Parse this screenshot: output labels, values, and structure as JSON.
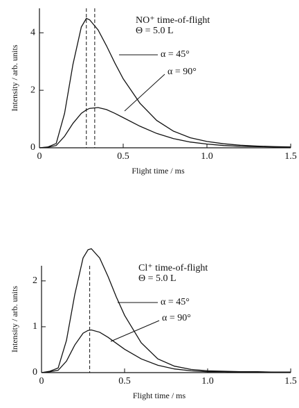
{
  "chart_data": [
    {
      "type": "line",
      "title": "NO⁺ time-of-flight",
      "subtitle": "Θ = 5.0 L",
      "xlabel": "Flight time / ms",
      "ylabel": "Intensity / arb. units",
      "x": [
        0,
        0.05,
        0.1,
        0.15,
        0.2,
        0.25,
        0.28,
        0.3,
        0.35,
        0.4,
        0.45,
        0.5,
        0.6,
        0.7,
        0.8,
        0.9,
        1.0,
        1.1,
        1.2,
        1.3,
        1.4,
        1.5
      ],
      "series": [
        {
          "name": "α = 45°",
          "color": "#111111",
          "values": [
            0,
            0.03,
            0.15,
            1.2,
            2.9,
            4.2,
            4.5,
            4.45,
            4.1,
            3.55,
            2.95,
            2.4,
            1.55,
            0.95,
            0.58,
            0.35,
            0.22,
            0.14,
            0.09,
            0.06,
            0.04,
            0.03
          ]
        },
        {
          "name": "α = 90°",
          "color": "#111111",
          "values": [
            0,
            0.02,
            0.08,
            0.4,
            0.85,
            1.2,
            1.32,
            1.37,
            1.4,
            1.33,
            1.2,
            1.05,
            0.75,
            0.5,
            0.32,
            0.2,
            0.13,
            0.08,
            0.05,
            0.04,
            0.03,
            0.02
          ]
        }
      ],
      "peak_lines": [
        0.28,
        0.33
      ],
      "xlim": [
        0,
        1.5
      ],
      "xticks": [
        0,
        0.5,
        {
          "value": 1,
          "label": "1.0"
        },
        1.5
      ],
      "ylim": [
        0,
        4.85
      ],
      "yticks": [
        0,
        2,
        4
      ]
    },
    {
      "type": "line",
      "title": "Cl⁺ time-of-flight",
      "subtitle": "Θ = 5.0 L",
      "xlabel": "Flight time / ms",
      "ylabel": "Intensity / arb. units",
      "x": [
        0,
        0.05,
        0.1,
        0.15,
        0.2,
        0.25,
        0.28,
        0.3,
        0.35,
        0.4,
        0.45,
        0.5,
        0.6,
        0.7,
        0.8,
        0.9,
        1.0,
        1.1,
        1.2,
        1.3,
        1.4,
        1.5
      ],
      "series": [
        {
          "name": "α = 45°",
          "color": "#111111",
          "values": [
            0,
            0.03,
            0.1,
            0.7,
            1.7,
            2.5,
            2.68,
            2.7,
            2.5,
            2.1,
            1.65,
            1.25,
            0.65,
            0.3,
            0.14,
            0.07,
            0.04,
            0.03,
            0.02,
            0.02,
            0.01,
            0.01
          ]
        },
        {
          "name": "α = 90°",
          "color": "#111111",
          "values": [
            0,
            0.02,
            0.05,
            0.25,
            0.6,
            0.86,
            0.92,
            0.93,
            0.88,
            0.77,
            0.64,
            0.51,
            0.3,
            0.16,
            0.08,
            0.04,
            0.02,
            0.02,
            0.01,
            0.01,
            0.01,
            0.01
          ]
        }
      ],
      "peak_lines": [
        0.29
      ],
      "xlim": [
        0,
        1.5
      ],
      "xticks": [
        0,
        0.5,
        {
          "value": 1,
          "label": "1.0"
        },
        1.5
      ],
      "ylim": [
        0,
        2.33
      ],
      "yticks": [
        0,
        1,
        2
      ]
    }
  ]
}
